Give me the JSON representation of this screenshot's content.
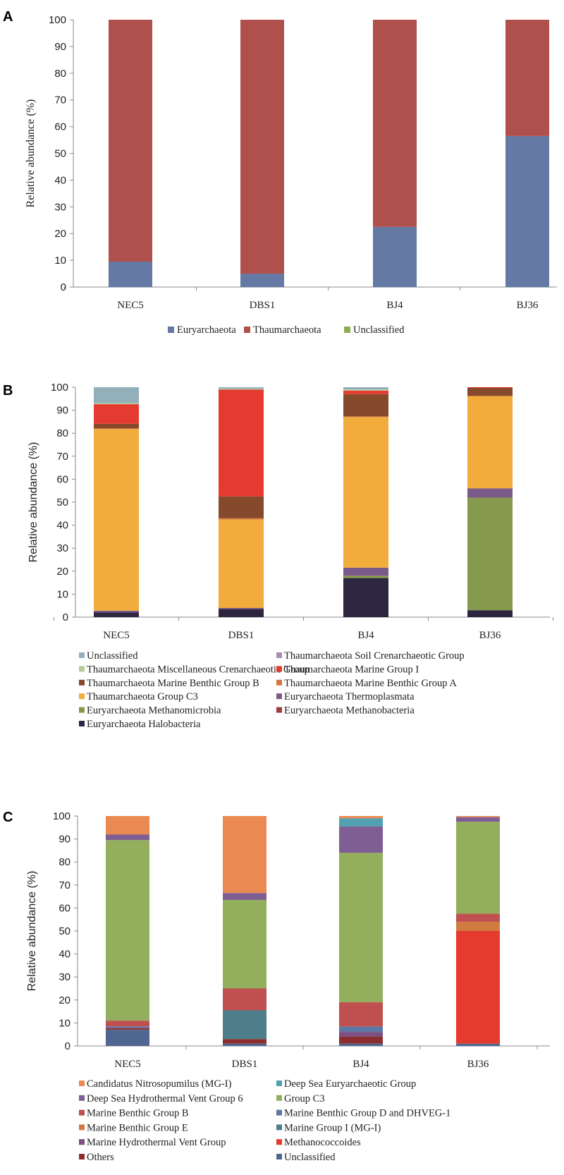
{
  "chart_data": [
    {
      "type": "bar",
      "stacked": true,
      "panel": "A",
      "categories": [
        "NEC5",
        "DBS1",
        "BJ4",
        "BJ36"
      ],
      "ylabel": "Relative abundance (%)",
      "ylim": [
        0,
        100
      ],
      "yticks": [
        0,
        10,
        20,
        30,
        40,
        50,
        60,
        70,
        80,
        90,
        100
      ],
      "legend_position": "bottom",
      "series": [
        {
          "name": "Euryarchaeota",
          "color": "#6479a3",
          "values": [
            9.5,
            5,
            22.5,
            56.5
          ]
        },
        {
          "name": "Thaumarchaeota",
          "color": "#b0504d",
          "values": [
            90.5,
            95,
            77.5,
            43.5
          ]
        },
        {
          "name": "Unclassified",
          "color": "#8bad52",
          "values": [
            0,
            0,
            0,
            0
          ]
        }
      ]
    },
    {
      "type": "bar",
      "stacked": true,
      "panel": "B",
      "categories": [
        "NEC5",
        "DBS1",
        "BJ4",
        "BJ36"
      ],
      "ylabel": "Relative abundance (%)",
      "ylim": [
        0,
        100
      ],
      "yticks": [
        0,
        10,
        20,
        30,
        40,
        50,
        60,
        70,
        80,
        90,
        100
      ],
      "legend_position": "bottom",
      "series": [
        {
          "name": "Euryarchaeota Halobacteria",
          "color": "#2e2540",
          "values": [
            2,
            3.5,
            17,
            3
          ]
        },
        {
          "name": "Euryarchaeota Methanobacteria",
          "color": "#9a3c3a",
          "values": [
            0,
            0,
            0,
            0
          ]
        },
        {
          "name": "Euryarchaeota Methanomicrobia",
          "color": "#869a4e",
          "values": [
            0,
            0,
            1,
            49
          ]
        },
        {
          "name": "Euryarchaeota Thermoplasmata",
          "color": "#7a5a8a",
          "values": [
            0.8,
            0.5,
            3.5,
            4
          ]
        },
        {
          "name": "Thaumarchaeota Group C3",
          "color": "#f2ac3c",
          "values": [
            79,
            38.5,
            65.5,
            40
          ]
        },
        {
          "name": "Thaumarchaeota Marine Benthic Group A",
          "color": "#d2773e",
          "values": [
            0.3,
            0.5,
            0.3,
            0.3
          ]
        },
        {
          "name": "Thaumarchaeota Marine Benthic Group B",
          "color": "#87492b",
          "values": [
            2,
            9.5,
            9.7,
            3.4
          ]
        },
        {
          "name": "Thaumarchaeota Marine Group I",
          "color": "#e53a30",
          "values": [
            8.5,
            46.5,
            1.5,
            0.3
          ]
        },
        {
          "name": "Thaumarchaeota Miscellaneous Crenarchaeotic Group",
          "color": "#b8cc9a",
          "values": [
            0.5,
            0.3,
            0.5,
            0
          ]
        },
        {
          "name": "Thaumarchaeota Soil Crenarchaeotic Group",
          "color": "#a68fae",
          "values": [
            0,
            0,
            0,
            0
          ]
        },
        {
          "name": "Unclassified",
          "color": "#93b0ba",
          "values": [
            6.9,
            0.7,
            1,
            0
          ]
        }
      ],
      "legend_order": [
        "Unclassified",
        "Thaumarchaeota Soil Crenarchaeotic Group",
        "Thaumarchaeota Miscellaneous Crenarchaeotic Group",
        "Thaumarchaeota Marine Group I",
        "Thaumarchaeota Marine Benthic Group B",
        "Thaumarchaeota Marine Benthic Group A",
        "Thaumarchaeota Group C3",
        "Euryarchaeota Thermoplasmata",
        "Euryarchaeota Methanomicrobia",
        "Euryarchaeota Methanobacteria",
        "Euryarchaeota Halobacteria"
      ]
    },
    {
      "type": "bar",
      "stacked": true,
      "panel": "C",
      "categories": [
        "NEC5",
        "DBS1",
        "BJ4",
        "BJ36"
      ],
      "ylabel": "Relative abundance (%)",
      "ylim": [
        0,
        100
      ],
      "yticks": [
        0,
        10,
        20,
        30,
        40,
        50,
        60,
        70,
        80,
        90,
        100
      ],
      "legend_position": "bottom",
      "series": [
        {
          "name": "Unclassified",
          "color": "#4f6690",
          "values": [
            7,
            1,
            1,
            1
          ]
        },
        {
          "name": "Others",
          "color": "#8b2e2e",
          "values": [
            0.5,
            2,
            3,
            0
          ]
        },
        {
          "name": "Methanococcoides",
          "color": "#e53a2e",
          "values": [
            0,
            0,
            0,
            49
          ]
        },
        {
          "name": "Marine Hydrothermal Vent Group",
          "color": "#7e4f80",
          "values": [
            0.5,
            0,
            2,
            0
          ]
        },
        {
          "name": "Marine Group I (MG-I)",
          "color": "#4e7e8a",
          "values": [
            0,
            12.5,
            0,
            0
          ]
        },
        {
          "name": "Marine Benthic Group E",
          "color": "#d07b40",
          "values": [
            0,
            0,
            0,
            4
          ]
        },
        {
          "name": "Marine Benthic Group D and DHVEG-1",
          "color": "#5e77a5",
          "values": [
            0.5,
            0,
            2.5,
            0
          ]
        },
        {
          "name": "Marine Benthic Group B",
          "color": "#c05050",
          "values": [
            2.5,
            9.5,
            10.5,
            3.5
          ]
        },
        {
          "name": "Group C3",
          "color": "#93ae5c",
          "values": [
            78.5,
            38.5,
            65,
            40
          ]
        },
        {
          "name": "Deep Sea Hydrothermal Vent Group 6",
          "color": "#7f5f93",
          "values": [
            2.5,
            3,
            11.5,
            2
          ]
        },
        {
          "name": "Deep Sea Euryarchaeotic Group",
          "color": "#4fa0b0",
          "values": [
            0,
            0,
            3.5,
            0
          ]
        },
        {
          "name": "Candidatus Nitrosopumilus (MG-I)",
          "color": "#ea8a52",
          "values": [
            8,
            33.5,
            1,
            0.5
          ]
        }
      ],
      "legend_order": [
        "Candidatus Nitrosopumilus (MG-I)",
        "Deep Sea Euryarchaeotic Group",
        "Deep Sea Hydrothermal Vent Group 6",
        "Group C3",
        "Marine Benthic Group B",
        "Marine Benthic Group D and DHVEG-1",
        "Marine Benthic Group E",
        "Marine Group I (MG-I)",
        "Marine Hydrothermal Vent Group",
        "Methanococcoides",
        "Others",
        "Unclassified"
      ]
    }
  ]
}
